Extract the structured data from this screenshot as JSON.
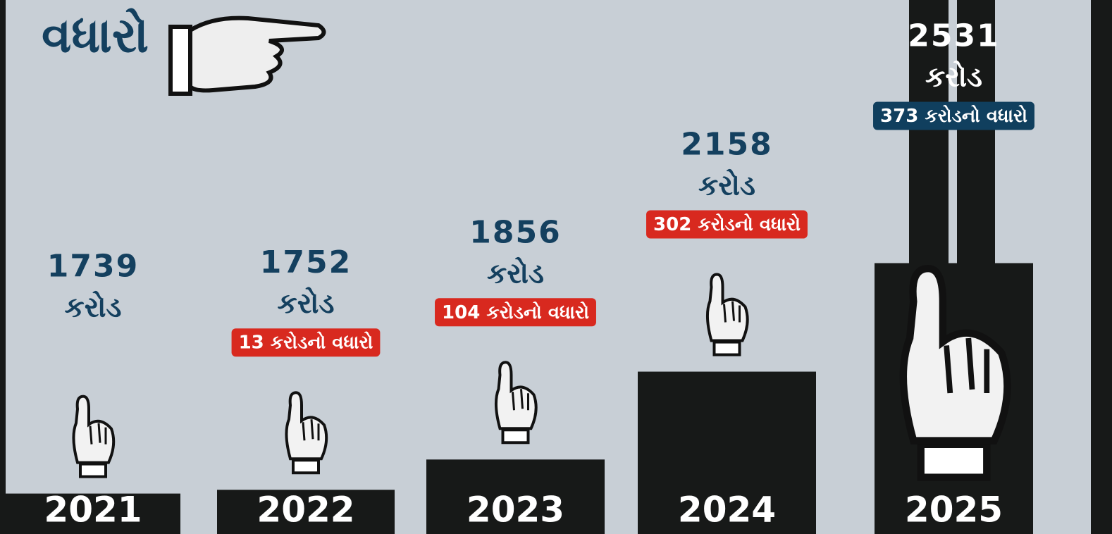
{
  "title": "વધારો",
  "chart_data": {
    "type": "bar",
    "categories": [
      "2021",
      "2022",
      "2023",
      "2024",
      "2025"
    ],
    "values": [
      1739,
      1752,
      1856,
      2158,
      2531
    ],
    "unit": "કરોડ",
    "increase_labels": [
      null,
      "13 કરોડનો વધારો",
      "104 કરોડનો વધારો",
      "302 કરોડનો વધારો",
      "373 કરોડનો વધારો"
    ],
    "ylim": [
      1600,
      2600
    ],
    "color": "#171918"
  }
}
